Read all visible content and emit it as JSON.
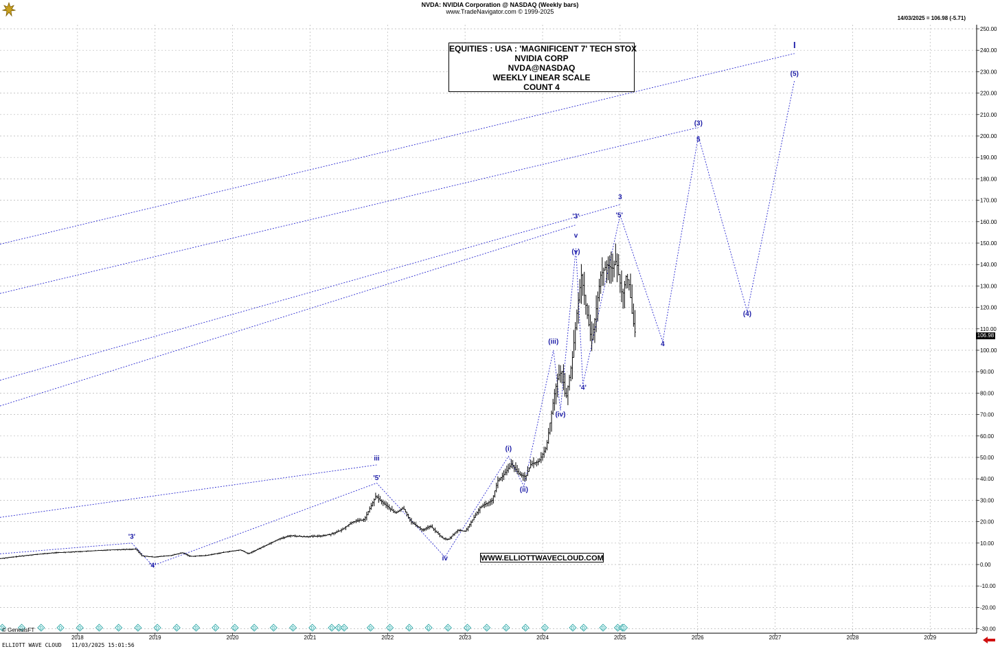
{
  "header": {
    "title": "NVDA:  NVIDIA Corporation @ NASDAQ  (Weekly bars)",
    "copyright": "www.TradeNavigator.com © 1999-2025",
    "last_bar": "14/03/2025 = 106.98 (-5.71)"
  },
  "title_box": {
    "lines": [
      "EQUITIES : USA : 'MAGNIFICENT 7' TECH STOX",
      "NVIDIA CORP",
      "NVDA@NASDAQ",
      "WEEKLY LINEAR SCALE",
      "COUNT 4"
    ]
  },
  "website": "WWW.ELLIOTTWAVECLOUD.COM",
  "footer": {
    "genesis": "© GenesisFT",
    "left": "ELLIOTT WAVE CLOUD   11/03/2025 15:01:56"
  },
  "price_tag": "106.98",
  "colors": {
    "wave_label": "#1a1aa6",
    "projection": "#2a2ad0",
    "bars": "#000000",
    "grid": "#b4b4b4",
    "dividend_marker": "#1a9a9a",
    "nav_arrow": "#d01010"
  },
  "chart_data": {
    "type": "ohlc",
    "scale": "linear",
    "x_axis_labels": [
      "2018",
      "2019",
      "2020",
      "2021",
      "2022",
      "2023",
      "2024",
      "2025",
      "2026",
      "2027",
      "2028",
      "2029"
    ],
    "x_range": [
      2017.0,
      2029.6
    ],
    "ylim": [
      -30,
      250
    ],
    "y_ticks": [
      250,
      240,
      230,
      220,
      210,
      200,
      190,
      180,
      170,
      160,
      150,
      140,
      130,
      120,
      110,
      100,
      90,
      80,
      70,
      60,
      50,
      40,
      30,
      20,
      10,
      0,
      -10,
      -20,
      -30
    ],
    "y_tick_labels": [
      "250.00",
      "240.00",
      "230.00",
      "220.00",
      "210.00",
      "200.00",
      "190.00",
      "180.00",
      "170.00",
      "160.00",
      "150.00",
      "140.00",
      "130.00",
      "120.00",
      "110.00",
      "100.00",
      "90.00",
      "80.00",
      "70.00",
      "60.00",
      "50.00",
      "40.00",
      "30.00",
      "20.00",
      "10.00",
      "0.00",
      "-10.00",
      "-20.00",
      "-30.00"
    ],
    "grid": true,
    "last_price": 106.98,
    "price_path": [
      [
        2017.0,
        2.8
      ],
      [
        2017.4,
        4.5
      ],
      [
        2017.7,
        5.5
      ],
      [
        2018.0,
        6.0
      ],
      [
        2018.4,
        6.8
      ],
      [
        2018.75,
        7.2
      ],
      [
        2018.83,
        4.0
      ],
      [
        2018.98,
        3.5
      ],
      [
        2019.2,
        4.2
      ],
      [
        2019.35,
        5.5
      ],
      [
        2019.45,
        3.8
      ],
      [
        2019.65,
        4.2
      ],
      [
        2019.9,
        5.8
      ],
      [
        2020.1,
        6.8
      ],
      [
        2020.2,
        5.0
      ],
      [
        2020.4,
        8.5
      ],
      [
        2020.6,
        12.0
      ],
      [
        2020.75,
        13.5
      ],
      [
        2020.9,
        13.0
      ],
      [
        2021.1,
        13.2
      ],
      [
        2021.25,
        14.0
      ],
      [
        2021.4,
        16.0
      ],
      [
        2021.55,
        20.0
      ],
      [
        2021.7,
        21.0
      ],
      [
        2021.85,
        32.0
      ],
      [
        2021.9,
        30.0
      ],
      [
        2022.0,
        27.0
      ],
      [
        2022.1,
        24.0
      ],
      [
        2022.2,
        26.5
      ],
      [
        2022.3,
        20.0
      ],
      [
        2022.45,
        16.0
      ],
      [
        2022.55,
        18.0
      ],
      [
        2022.7,
        12.5
      ],
      [
        2022.78,
        11.5
      ],
      [
        2022.9,
        16.0
      ],
      [
        2023.0,
        15.5
      ],
      [
        2023.1,
        21.0
      ],
      [
        2023.2,
        27.0
      ],
      [
        2023.35,
        30.0
      ],
      [
        2023.42,
        39.0
      ],
      [
        2023.5,
        42.0
      ],
      [
        2023.6,
        47.0
      ],
      [
        2023.7,
        42.0
      ],
      [
        2023.78,
        41.0
      ],
      [
        2023.85,
        47.0
      ],
      [
        2023.95,
        48.0
      ],
      [
        2024.05,
        55.0
      ],
      [
        2024.15,
        79.0
      ],
      [
        2024.2,
        88.0
      ],
      [
        2024.25,
        90.0
      ],
      [
        2024.3,
        77.0
      ],
      [
        2024.38,
        95.0
      ],
      [
        2024.45,
        120.0
      ],
      [
        2024.5,
        135.0
      ],
      [
        2024.57,
        118.0
      ],
      [
        2024.63,
        104.0
      ],
      [
        2024.68,
        116.0
      ],
      [
        2024.75,
        135.0
      ],
      [
        2024.83,
        140.0
      ],
      [
        2024.9,
        138.0
      ],
      [
        2024.95,
        142.0
      ],
      [
        2025.03,
        125.0
      ],
      [
        2025.08,
        135.0
      ],
      [
        2025.12,
        130.0
      ],
      [
        2025.16,
        115.0
      ],
      [
        2025.2,
        106.98
      ]
    ],
    "wave_labels": [
      {
        "text": "'3'",
        "x": 2018.7,
        "y": 12.0
      },
      {
        "text": "'4'",
        "x": 2018.97,
        "y": -1.5
      },
      {
        "text": "iii",
        "x": 2021.86,
        "y": 48.5
      },
      {
        "text": "'5'",
        "x": 2021.86,
        "y": 39.5
      },
      {
        "text": "iv",
        "x": 2022.74,
        "y": 2.0
      },
      {
        "text": "(i)",
        "x": 2023.56,
        "y": 53.0
      },
      {
        "text": "(ii)",
        "x": 2023.76,
        "y": 34.0
      },
      {
        "text": "(iii)",
        "x": 2024.14,
        "y": 103.0
      },
      {
        "text": "(iv)",
        "x": 2024.23,
        "y": 69.0
      },
      {
        "text": "(v)",
        "x": 2024.43,
        "y": 145.0
      },
      {
        "text": "v",
        "x": 2024.43,
        "y": 152.5
      },
      {
        "text": "'3'",
        "x": 2024.43,
        "y": 161.5
      },
      {
        "text": "'4'",
        "x": 2024.52,
        "y": 81.5
      },
      {
        "text": "3",
        "x": 2025.0,
        "y": 170.5
      },
      {
        "text": "'5'",
        "x": 2024.99,
        "y": 162.0
      },
      {
        "text": "4",
        "x": 2025.55,
        "y": 102.0
      },
      {
        "text": "(3)",
        "x": 2026.01,
        "y": 205.0
      },
      {
        "text": "5",
        "x": 2026.01,
        "y": 197.5
      },
      {
        "text": "(4)",
        "x": 2026.64,
        "y": 116.0
      },
      {
        "text": "(5)",
        "x": 2027.25,
        "y": 228.0
      },
      {
        "text": "I",
        "x": 2027.25,
        "y": 241.0
      }
    ],
    "projection_path": [
      [
        2018.7,
        10.0
      ],
      [
        2018.97,
        -0.5
      ],
      [
        2021.86,
        38.0
      ],
      [
        2022.74,
        3.5
      ],
      [
        2023.56,
        50.5
      ],
      [
        2023.76,
        36.5
      ],
      [
        2024.14,
        100.0
      ],
      [
        2024.23,
        72.0
      ],
      [
        2024.43,
        147.5
      ],
      [
        2024.52,
        84.0
      ],
      [
        2025.0,
        163.0
      ],
      [
        2025.55,
        104.0
      ],
      [
        2026.01,
        200.0
      ],
      [
        2026.64,
        118.0
      ],
      [
        2027.25,
        226.0
      ]
    ],
    "channel_lines": [
      [
        [
          2017.0,
          5.0
        ],
        [
          2018.7,
          10.0
        ]
      ],
      [
        [
          2017.0,
          22.0
        ],
        [
          2021.86,
          46.5
        ]
      ],
      [
        [
          2017.0,
          74.0
        ],
        [
          2024.43,
          158.5
        ]
      ],
      [
        [
          2017.0,
          86.0
        ],
        [
          2025.0,
          168.0
        ]
      ],
      [
        [
          2017.0,
          126.5
        ],
        [
          2026.01,
          204.0
        ]
      ],
      [
        [
          2017.0,
          149.5
        ],
        [
          2027.25,
          238.5
        ]
      ]
    ],
    "marker_dates": [
      2017.03,
      2017.28,
      2017.53,
      2017.78,
      2018.03,
      2018.28,
      2018.53,
      2018.78,
      2019.03,
      2019.28,
      2019.53,
      2019.78,
      2020.03,
      2020.28,
      2020.53,
      2020.78,
      2021.03,
      2021.28,
      2021.37,
      2021.44,
      2021.78,
      2022.03,
      2022.28,
      2022.53,
      2022.78,
      2023.03,
      2023.28,
      2023.53,
      2023.78,
      2024.03,
      2024.39,
      2024.53,
      2024.78,
      2024.97,
      2025.03,
      2025.05
    ]
  }
}
